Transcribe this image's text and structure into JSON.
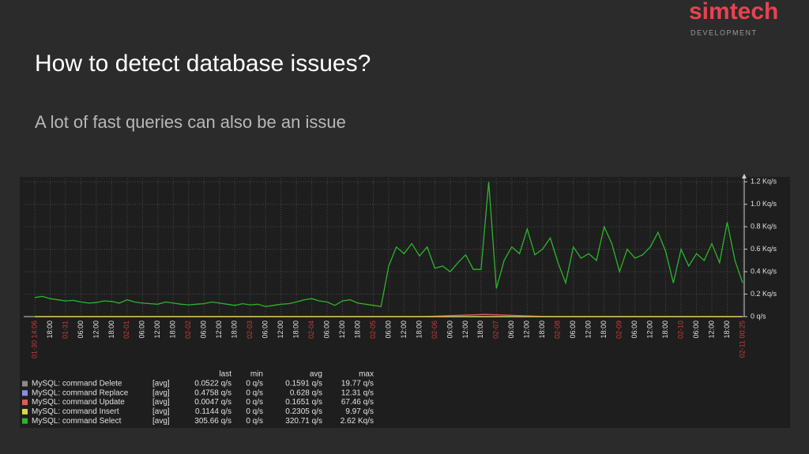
{
  "logo": {
    "name": "simtech",
    "tagline": "DEVELOPMENT"
  },
  "title": "How to detect database issues?",
  "subtitle": "A lot of fast queries can also be an issue",
  "chart_data": {
    "type": "line",
    "x_tick_labels": [
      "01-30 14:06",
      "18:00",
      "01-31",
      "06:00",
      "12:00",
      "18:00",
      "02-01",
      "06:00",
      "12:00",
      "18:00",
      "02-02",
      "06:00",
      "12:00",
      "18:00",
      "02-03",
      "06:00",
      "12:00",
      "18:00",
      "02-04",
      "06:00",
      "12:00",
      "18:00",
      "02-05",
      "06:00",
      "12:00",
      "18:00",
      "02-06",
      "06:00",
      "12:00",
      "18:00",
      "02-07",
      "06:00",
      "12:00",
      "18:00",
      "02-08",
      "06:00",
      "12:00",
      "18:00",
      "02-09",
      "06:00",
      "12:00",
      "18:00",
      "02-10",
      "06:00",
      "12:00",
      "18:00",
      "02-11 00:25"
    ],
    "ylim": [
      0,
      1230
    ],
    "yticks": [
      {
        "value": 0,
        "label": "0 q/s"
      },
      {
        "value": 200,
        "label": "0.2 Kq/s"
      },
      {
        "value": 400,
        "label": "0.4 Kq/s"
      },
      {
        "value": 600,
        "label": "0.6 Kq/s"
      },
      {
        "value": 800,
        "label": "0.8 Kq/s"
      },
      {
        "value": 1000,
        "label": "1.0 Kq/s"
      },
      {
        "value": 1200,
        "label": "1.2 Kq/s"
      }
    ],
    "grid": true,
    "legend_columns": [
      "last",
      "min",
      "avg",
      "max"
    ],
    "series": [
      {
        "name": "MySQL: command Delete",
        "color": "#8a8a8a",
        "values": [
          0,
          0,
          0,
          0,
          0,
          0,
          0,
          0,
          0,
          0,
          0,
          0
        ],
        "function": "[avg]",
        "stats": [
          "0.0522 q/s",
          "0 q/s",
          "0.1591 q/s",
          "19.77 q/s"
        ]
      },
      {
        "name": "MySQL: command Replace",
        "color": "#8c8ce8",
        "values": [
          0,
          0,
          0,
          0,
          0,
          0,
          0,
          0,
          0,
          0,
          0,
          0
        ],
        "function": "[avg]",
        "stats": [
          "0.4758 q/s",
          "0 q/s",
          "0.628 q/s",
          "12.31 q/s"
        ]
      },
      {
        "name": "MySQL: command Update",
        "color": "#e05a5a",
        "values": [
          0,
          0,
          0,
          0,
          0,
          0,
          0,
          20,
          0,
          0,
          0,
          0
        ],
        "function": "[avg]",
        "stats": [
          "0.0047 q/s",
          "0 q/s",
          "0.1651 q/s",
          "67.46 q/s"
        ]
      },
      {
        "name": "MySQL: command Insert",
        "color": "#d8d84a",
        "values": [
          0,
          0,
          0,
          0,
          0,
          0,
          0,
          0,
          0,
          0,
          0,
          0
        ],
        "function": "[avg]",
        "stats": [
          "0.1144 q/s",
          "0 q/s",
          "0.2305 q/s",
          "9.97 q/s"
        ]
      },
      {
        "name": "MySQL: command Select",
        "color": "#2cb52c",
        "values": [
          170,
          180,
          160,
          150,
          140,
          145,
          130,
          120,
          125,
          140,
          135,
          120,
          150,
          130,
          120,
          115,
          110,
          130,
          120,
          110,
          105,
          110,
          115,
          130,
          120,
          110,
          100,
          115,
          105,
          110,
          90,
          100,
          110,
          115,
          130,
          150,
          160,
          140,
          130,
          100,
          140,
          150,
          120,
          110,
          100,
          90,
          450,
          620,
          560,
          650,
          540,
          620,
          430,
          450,
          400,
          480,
          550,
          420,
          420,
          1200,
          250,
          500,
          620,
          560,
          780,
          550,
          600,
          700,
          480,
          300,
          620,
          520,
          560,
          500,
          800,
          650,
          400,
          600,
          520,
          550,
          620,
          750,
          580,
          300,
          600,
          450,
          560,
          500,
          650,
          480,
          840,
          500,
          300
        ],
        "function": "[avg]",
        "stats": [
          "305.66 q/s",
          "0 q/s",
          "320.71 q/s",
          "2.62 Kq/s"
        ]
      }
    ]
  }
}
